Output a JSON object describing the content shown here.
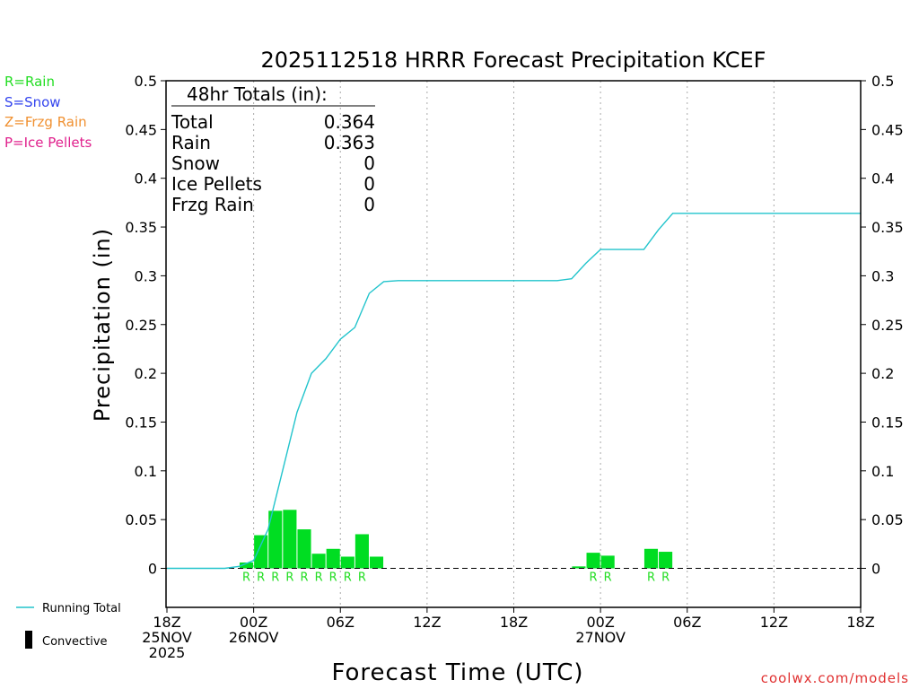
{
  "chart_data": {
    "type": "bar",
    "title": "2025112518 HRRR Forecast Precipitation KCEF",
    "xlabel": "Forecast Time (UTC)",
    "ylabel": "Precipitation (in)",
    "ylim": [
      -0.04,
      0.5
    ],
    "xlim_hours": [
      0,
      48
    ],
    "yticks": [
      "0",
      "0.05",
      "0.1",
      "0.15",
      "0.2",
      "0.25",
      "0.3",
      "0.35",
      "0.4",
      "0.45",
      "0.5"
    ],
    "ytick_values": [
      0,
      0.05,
      0.1,
      0.15,
      0.2,
      0.25,
      0.3,
      0.35,
      0.4,
      0.45,
      0.5
    ],
    "xticks": [
      {
        "hour": 0,
        "lines": [
          "18Z",
          "25NOV",
          "2025"
        ]
      },
      {
        "hour": 6,
        "lines": [
          "00Z",
          "26NOV"
        ]
      },
      {
        "hour": 12,
        "lines": [
          "06Z"
        ]
      },
      {
        "hour": 18,
        "lines": [
          "12Z"
        ]
      },
      {
        "hour": 24,
        "lines": [
          "18Z"
        ]
      },
      {
        "hour": 30,
        "lines": [
          "00Z",
          "27NOV"
        ]
      },
      {
        "hour": 36,
        "lines": [
          "06Z"
        ]
      },
      {
        "hour": 42,
        "lines": [
          "12Z"
        ]
      },
      {
        "hour": 48,
        "lines": [
          "18Z"
        ]
      }
    ],
    "hourly_precip": {
      "hours": [
        6,
        7,
        8,
        9,
        10,
        11,
        12,
        13,
        14,
        15,
        29,
        30,
        31,
        34,
        35
      ],
      "values": [
        0.006,
        0.034,
        0.059,
        0.06,
        0.04,
        0.015,
        0.02,
        0.012,
        0.035,
        0.012,
        0.002,
        0.016,
        0.013,
        0.02,
        0.017
      ],
      "type_labels": [
        "R",
        "R",
        "R",
        "R",
        "R",
        "R",
        "R",
        "R",
        "R",
        "",
        "",
        "R",
        "R",
        "R",
        "R"
      ]
    },
    "running_total": {
      "hours": [
        0,
        1,
        2,
        3,
        4,
        5,
        6,
        7,
        8,
        9,
        10,
        11,
        12,
        13,
        14,
        15,
        16,
        17,
        18,
        19,
        20,
        21,
        22,
        23,
        24,
        25,
        26,
        27,
        28,
        29,
        30,
        31,
        32,
        33,
        34,
        35,
        36,
        37,
        38,
        39,
        40,
        41,
        42,
        43,
        44,
        45,
        46,
        47,
        48
      ],
      "values": [
        0,
        0,
        0,
        0,
        0,
        0.002,
        0.008,
        0.04,
        0.1,
        0.16,
        0.2,
        0.215,
        0.235,
        0.247,
        0.282,
        0.294,
        0.295,
        0.295,
        0.295,
        0.295,
        0.295,
        0.295,
        0.295,
        0.295,
        0.295,
        0.295,
        0.295,
        0.295,
        0.297,
        0.313,
        0.327,
        0.327,
        0.327,
        0.327,
        0.347,
        0.364,
        0.364,
        0.364,
        0.364,
        0.364,
        0.364,
        0.364,
        0.364,
        0.364,
        0.364,
        0.364,
        0.364,
        0.364,
        0.364
      ]
    },
    "totals_table": {
      "header": "48hr Totals (in):",
      "rows": [
        {
          "label": "Total",
          "value": "0.364"
        },
        {
          "label": "Rain",
          "value": "0.363"
        },
        {
          "label": "Snow",
          "value": "0"
        },
        {
          "label": "Ice Pellets",
          "value": "0"
        },
        {
          "label": "Frzg Rain",
          "value": "0"
        }
      ]
    },
    "type_legend": [
      {
        "text": "R=Rain",
        "color": "#22dd22"
      },
      {
        "text": "S=Snow",
        "color": "#3344ee"
      },
      {
        "text": "Z=Frzg Rain",
        "color": "#f09030"
      },
      {
        "text": "P=Ice Pellets",
        "color": "#e0208c"
      }
    ],
    "series_legend": {
      "running_total": "Running Total",
      "convective": "Convective"
    },
    "credit": "coolwx.com/models",
    "colors": {
      "bar": "#00dd22",
      "running_total": "#22c4cc",
      "grid": "#aaaaaa",
      "credit": "#e03030"
    }
  }
}
